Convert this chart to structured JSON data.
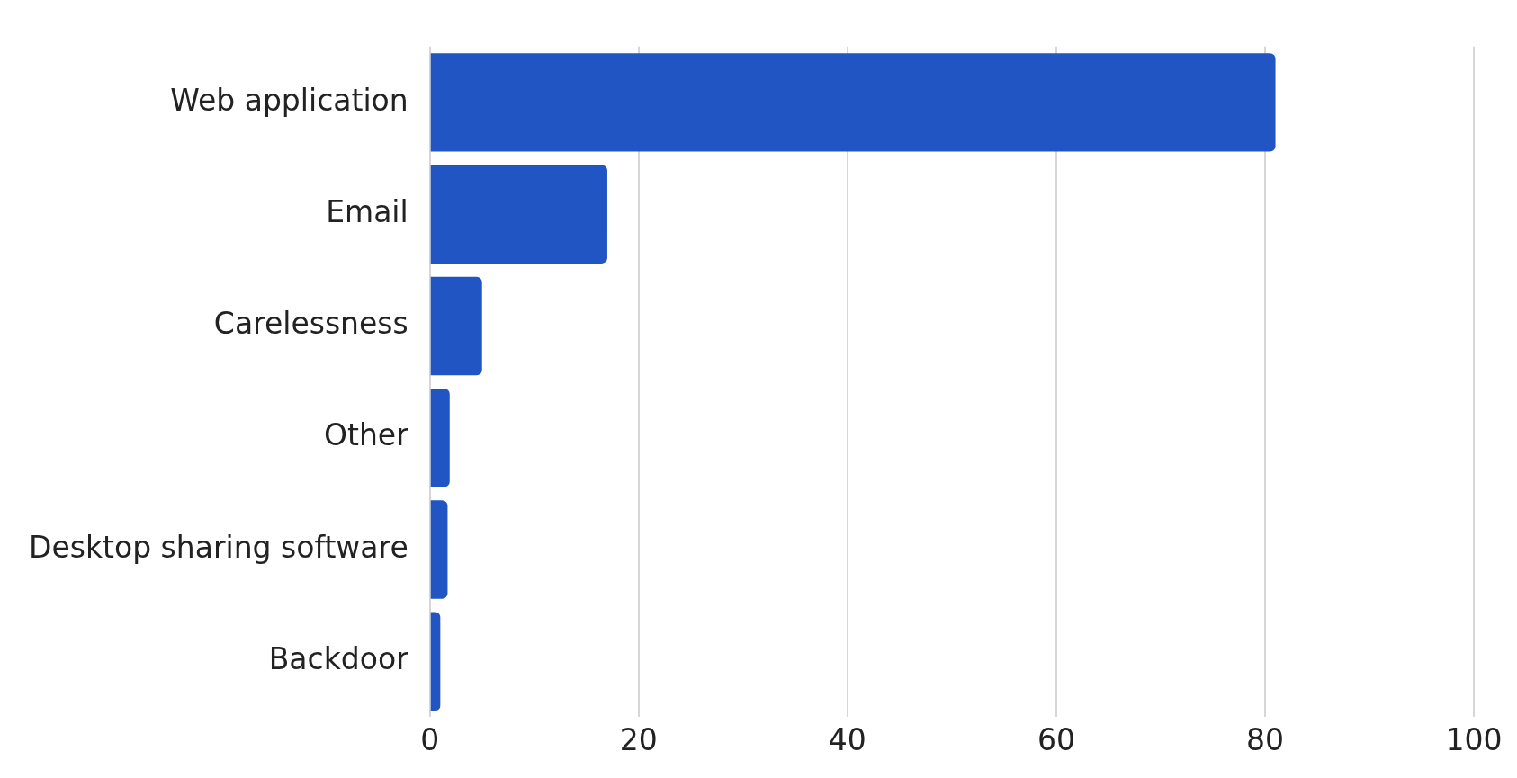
{
  "chart_data": {
    "type": "bar",
    "orientation": "horizontal",
    "categories": [
      "Web application",
      "Email",
      "Carelessness",
      "Other",
      "Desktop sharing software",
      "Backdoor"
    ],
    "values": [
      81,
      17,
      5,
      1.9,
      1.7,
      1
    ],
    "color": "#2255c4",
    "xlim": [
      0,
      100
    ],
    "xticks": [
      0,
      20,
      40,
      60,
      80,
      100
    ],
    "grid": "x",
    "legend": false
  }
}
